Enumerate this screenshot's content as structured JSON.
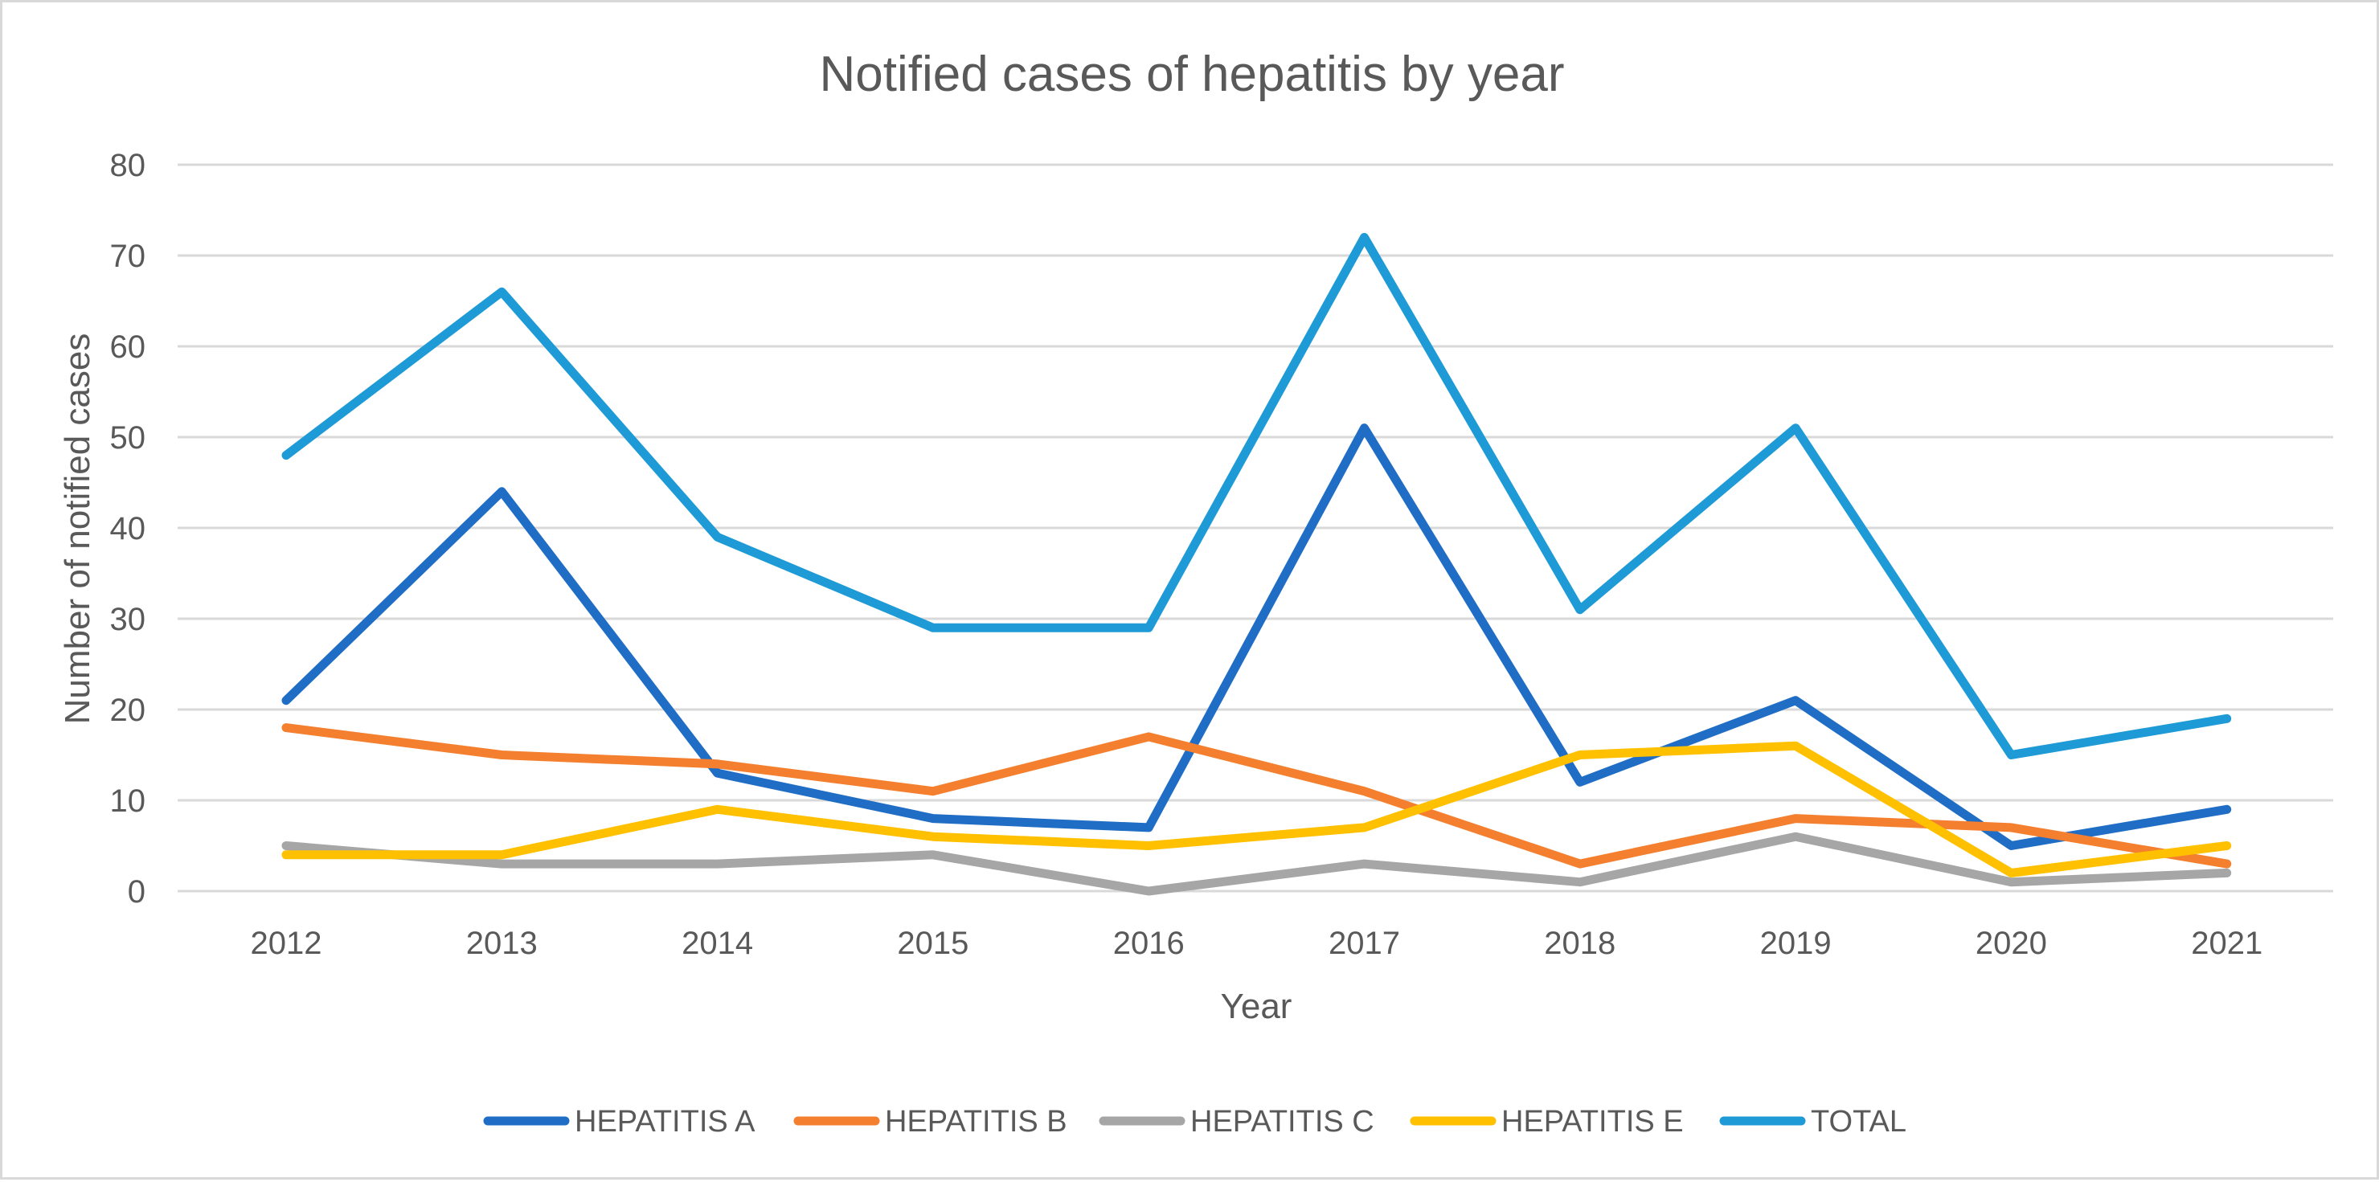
{
  "chart_data": {
    "type": "line",
    "title": "Notified cases of hepatitis by year",
    "xlabel": "Year",
    "ylabel": "Number of notified cases",
    "ylim": [
      0,
      80
    ],
    "yticks": [
      "0",
      "10",
      "20",
      "30",
      "40",
      "50",
      "60",
      "70",
      "80"
    ],
    "categories": [
      "2012",
      "2013",
      "2014",
      "2015",
      "2016",
      "2017",
      "2018",
      "2019",
      "2020",
      "2021"
    ],
    "grid": true,
    "legend_position": "bottom",
    "series": [
      {
        "name": "HEPATITIS A",
        "color": "#1F6DC4",
        "values": [
          21,
          44,
          13,
          8,
          7,
          51,
          12,
          21,
          5,
          9
        ]
      },
      {
        "name": "HEPATITIS B",
        "color": "#F47F2E",
        "values": [
          18,
          15,
          14,
          11,
          17,
          11,
          3,
          8,
          7,
          3
        ]
      },
      {
        "name": "HEPATITIS C",
        "color": "#A6A6A6",
        "values": [
          5,
          3,
          3,
          4,
          0,
          3,
          1,
          6,
          1,
          2
        ]
      },
      {
        "name": "HEPATITIS E",
        "color": "#FFC000",
        "values": [
          4,
          4,
          9,
          6,
          5,
          7,
          15,
          16,
          2,
          5
        ]
      },
      {
        "name": "TOTAL",
        "color": "#1E9AD6",
        "values": [
          48,
          66,
          39,
          29,
          29,
          72,
          31,
          51,
          15,
          19
        ]
      }
    ]
  }
}
